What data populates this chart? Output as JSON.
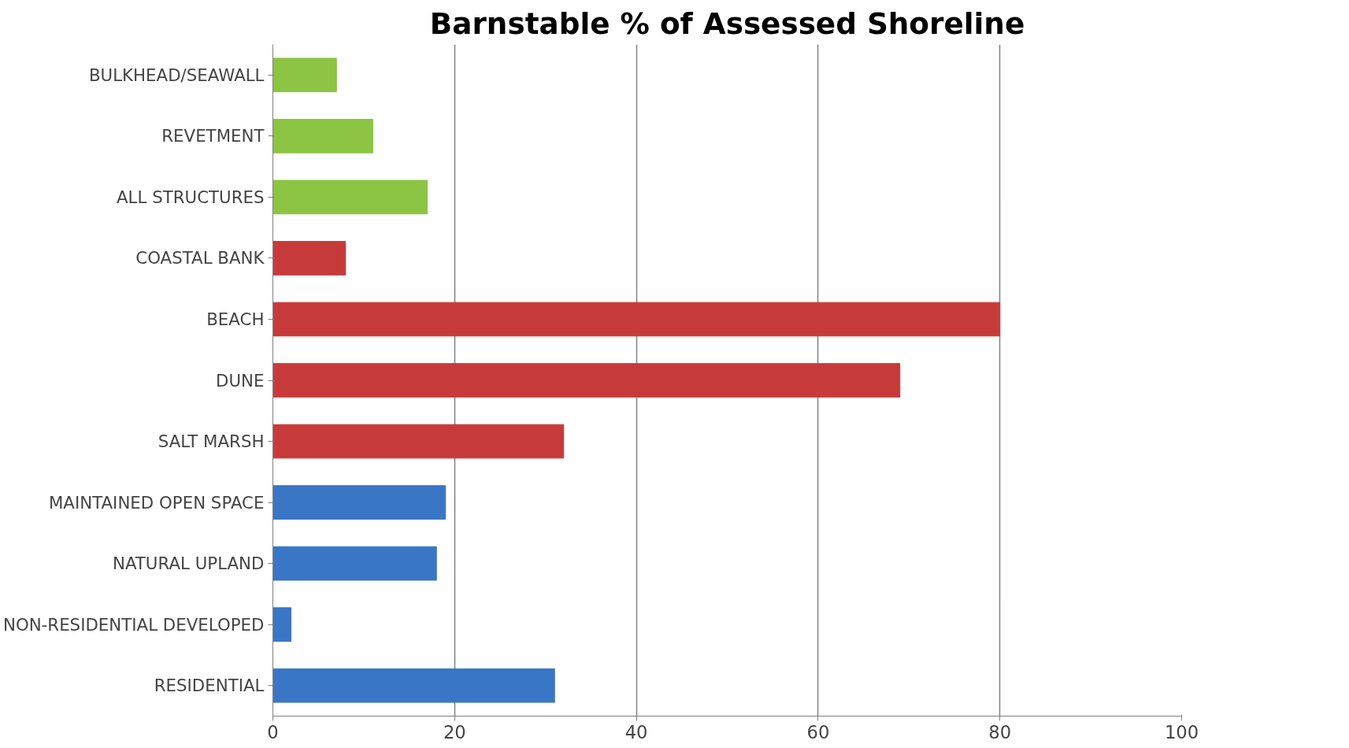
{
  "chart_data": {
    "type": "bar",
    "orientation": "horizontal",
    "title": "Barnstable % of Assessed Shoreline",
    "categories": [
      "BULKHEAD/SEAWALL",
      "REVETMENT",
      "ALL STRUCTURES",
      "COASTAL BANK",
      "BEACH",
      "DUNE",
      "SALT MARSH",
      "MAINTAINED OPEN SPACE",
      "NATURAL UPLAND",
      "NON-RESIDENTIAL DEVELOPED",
      "RESIDENTIAL"
    ],
    "values": [
      7,
      11,
      17,
      8,
      80,
      69,
      32,
      19,
      18,
      2,
      31
    ],
    "colors": [
      "#8cc443",
      "#8cc443",
      "#8cc443",
      "#c73a3a",
      "#c73a3a",
      "#c73a3a",
      "#c73a3a",
      "#3a76c6",
      "#3a76c6",
      "#3a76c6",
      "#3a76c6"
    ],
    "xlim": [
      0,
      100
    ],
    "xticks": [
      0,
      20,
      40,
      60,
      80,
      100
    ],
    "grid": "x"
  }
}
